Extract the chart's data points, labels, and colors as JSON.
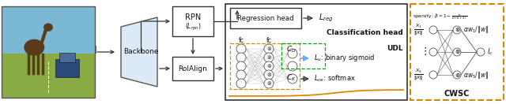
{
  "figsize": [
    6.4,
    1.32
  ],
  "dpi": 100,
  "bg_color": "#ffffff",
  "colors": {
    "arrow_black": "#333333",
    "arrow_blue": "#55aaff",
    "dashed_green": "#00aa00",
    "dashed_orange": "#dd8800",
    "cwsc_border": "#cc8800",
    "backbone_fill": "#dce9f7",
    "box_fill": "#ffffff",
    "photo_sky": "#7ab8d4",
    "photo_road": "#9a9a9a",
    "photo_grass": "#8aaa44",
    "photo_trees": "#4a7a2a",
    "photo_moose": "#5a3a1a",
    "photo_car": "#2a4a7a"
  },
  "labels": {
    "backbone": "Backbone",
    "roialign": "RoIAlign",
    "rpn_top": "RPN",
    "rpn_sub": "($\\it{L_{rpn}}$)",
    "reg_head": "Regression head",
    "classif_head": "Classification head",
    "lreg": "$\\it{L_{reg}}$",
    "cu": "$\\it{C_U}$",
    "ck": "$\\it{C_K}$",
    "lu": "$\\it{L_u}$: binary sigmoid",
    "lce": "$\\it{L_{ce}}$: softmax",
    "udl": "UDL",
    "fc": "fc",
    "sparsity": "sparsity: $\\hat{\\beta} = 1 - \\frac{n}{D{\\cdot}(K+2)}$",
    "x1_xnorm": "$\\frac{X_1}{\\|X\\|}$",
    "x5_xnorm": "$\\frac{X_5}{\\|X\\|}$",
    "aw1_wnorm": "$\\alpha w_1/\\|w\\|$",
    "aw5_wnorm": "$\\alpha w_5/\\|w\\|$",
    "lc": "$l_c$",
    "cwsc": "CWSC"
  }
}
